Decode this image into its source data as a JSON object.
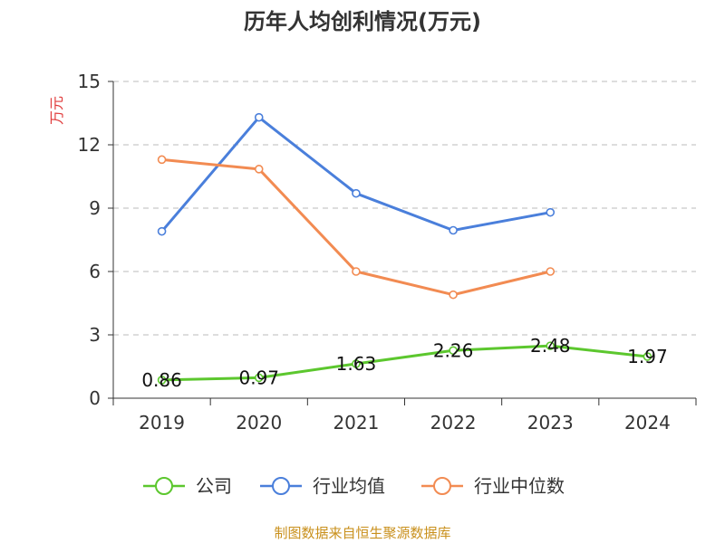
{
  "chart_data": {
    "type": "line",
    "title": "历年人均创利情况(万元)",
    "ylabel": "万元",
    "xlabel": "",
    "ylim": [
      0,
      15
    ],
    "yticks": [
      0,
      3,
      6,
      9,
      12,
      15
    ],
    "grid": true,
    "categories": [
      "2019",
      "2020",
      "2021",
      "2022",
      "2023",
      "2024"
    ],
    "series": [
      {
        "name": "公司",
        "values": [
          0.86,
          0.97,
          1.63,
          2.26,
          2.48,
          1.97
        ],
        "color": "#5CC72E",
        "labels": [
          "0.86",
          "0.97",
          "1.63",
          "2.26",
          "2.48",
          "1.97"
        ]
      },
      {
        "name": "行业均值",
        "values": [
          7.9,
          13.3,
          9.7,
          7.95,
          8.8,
          null
        ],
        "color": "#4A7FDB"
      },
      {
        "name": "行业中位数",
        "values": [
          11.3,
          10.85,
          6.0,
          4.9,
          6.0,
          null
        ],
        "color": "#F28B52"
      }
    ],
    "legend_position": "bottom",
    "source_text": "制图数据来自恒生聚源数据库",
    "ylabel_color": "#E03B3B",
    "source_color": "#C9901C"
  }
}
